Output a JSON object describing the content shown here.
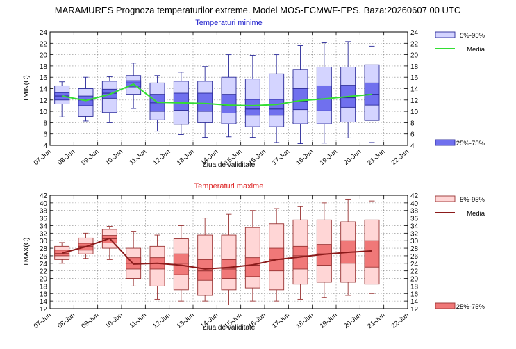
{
  "page_title": "MARAMURES  Prognoza temperaturilor extreme.  Model MOS-ECMWF-EPS. Baza:20260607 00 UTC",
  "colors": {
    "tmin_outer_fill": "#d4d4ff",
    "tmin_inner_fill": "#7070ee",
    "tmin_stroke": "#2a2a99",
    "tmin_media": "#33dd33",
    "tmin_title": "#2222cc",
    "tmax_outer_fill": "#ffd6d6",
    "tmax_inner_fill": "#f07878",
    "tmax_stroke": "#993333",
    "tmax_media": "#8b1a1a",
    "tmax_title": "#dd2222"
  },
  "chart_data": [
    {
      "type": "box",
      "title": "Temperaturi minime",
      "xlabel": "Ziua de validitate",
      "ylabel": "TMIN(C)",
      "x_ticks": [
        "07-Jun",
        "08-Jun",
        "09-Jun",
        "10-Jun",
        "11-Jun",
        "12-Jun",
        "13-Jun",
        "14-Jun",
        "15-Jun",
        "16-Jun",
        "17-Jun",
        "18-Jun",
        "19-Jun",
        "20-Jun",
        "21-Jun",
        "22-Jun"
      ],
      "y_ticks": [
        "4",
        "6",
        "8",
        "10",
        "12",
        "14",
        "16",
        "18",
        "20",
        "22",
        "24"
      ],
      "ylim": [
        4,
        24
      ],
      "grid": true,
      "legend": [
        {
          "label": "5%-95%",
          "kind": "outer"
        },
        {
          "label": "Media",
          "kind": "line"
        },
        {
          "label": "25%-75%",
          "kind": "inner"
        }
      ],
      "boxes": [
        {
          "x": 0,
          "min": 9.0,
          "p5": 11.3,
          "p25": 12.0,
          "median": 12.7,
          "p75": 13.3,
          "p95": 14.5,
          "max": 15.2,
          "mean": 12.7
        },
        {
          "x": 1,
          "min": 8.3,
          "p5": 9.1,
          "p25": 11.0,
          "median": 12.0,
          "p75": 12.7,
          "p95": 14.0,
          "max": 16.0,
          "mean": 11.9
        },
        {
          "x": 2,
          "min": 8.0,
          "p5": 9.8,
          "p25": 12.3,
          "median": 13.2,
          "p75": 13.9,
          "p95": 15.3,
          "max": 16.1,
          "mean": 13.0
        },
        {
          "x": 3,
          "min": 10.5,
          "p5": 13.0,
          "p25": 14.3,
          "median": 15.0,
          "p75": 15.4,
          "p95": 16.3,
          "max": 18.5,
          "mean": 14.8
        },
        {
          "x": 4,
          "min": 6.5,
          "p5": 8.5,
          "p25": 10.0,
          "median": 11.5,
          "p75": 13.0,
          "p95": 15.0,
          "max": 16.3,
          "mean": 11.6
        },
        {
          "x": 5,
          "min": 5.9,
          "p5": 7.7,
          "p25": 10.2,
          "median": 11.5,
          "p75": 13.2,
          "p95": 15.3,
          "max": 16.9,
          "mean": 11.5
        },
        {
          "x": 6,
          "min": 5.4,
          "p5": 8.0,
          "p25": 10.0,
          "median": 11.3,
          "p75": 13.2,
          "p95": 15.3,
          "max": 17.9,
          "mean": 11.4
        },
        {
          "x": 7,
          "min": 5.5,
          "p5": 7.8,
          "p25": 9.7,
          "median": 11.0,
          "p75": 13.0,
          "p95": 16.0,
          "max": 20.0,
          "mean": 11.1
        },
        {
          "x": 8,
          "min": 5.4,
          "p5": 7.3,
          "p25": 9.3,
          "median": 10.4,
          "p75": 12.1,
          "p95": 15.7,
          "max": 19.9,
          "mean": 11.0
        },
        {
          "x": 9,
          "min": 4.5,
          "p5": 7.3,
          "p25": 9.3,
          "median": 10.4,
          "p75": 12.1,
          "p95": 16.6,
          "max": 20.0,
          "mean": 11.2
        },
        {
          "x": 10,
          "min": 4.3,
          "p5": 7.8,
          "p25": 10.3,
          "median": 11.8,
          "p75": 14.0,
          "p95": 17.4,
          "max": 21.6,
          "mean": 11.9
        },
        {
          "x": 11,
          "min": 4.4,
          "p5": 7.8,
          "p25": 10.1,
          "median": 12.2,
          "p75": 14.5,
          "p95": 17.8,
          "max": 22.1,
          "mean": 12.2
        },
        {
          "x": 12,
          "min": 5.3,
          "p5": 8.1,
          "p25": 10.7,
          "median": 12.4,
          "p75": 14.6,
          "p95": 17.8,
          "max": 22.3,
          "mean": 12.6
        },
        {
          "x": 13,
          "min": 4.5,
          "p5": 8.4,
          "p25": 11.1,
          "median": 13.0,
          "p75": 15.0,
          "p95": 18.2,
          "max": 21.5,
          "mean": 13.0
        }
      ]
    },
    {
      "type": "box",
      "title": "Temperaturi maxime",
      "xlabel": "Ziua de validitate",
      "ylabel": "TMAX(C)",
      "x_ticks": [
        "07-Jun",
        "08-Jun",
        "09-Jun",
        "10-Jun",
        "11-Jun",
        "12-Jun",
        "13-Jun",
        "14-Jun",
        "15-Jun",
        "16-Jun",
        "17-Jun",
        "18-Jun",
        "19-Jun",
        "20-Jun",
        "21-Jun",
        "22-Jun"
      ],
      "y_ticks": [
        "12",
        "14",
        "16",
        "18",
        "20",
        "22",
        "24",
        "26",
        "28",
        "30",
        "32",
        "34",
        "36",
        "38",
        "40",
        "42"
      ],
      "ylim": [
        12,
        42
      ],
      "grid": true,
      "legend": [
        {
          "label": "5%-95%",
          "kind": "outer"
        },
        {
          "label": "Media",
          "kind": "line"
        },
        {
          "label": "25%-75%",
          "kind": "inner"
        }
      ],
      "boxes": [
        {
          "x": 0,
          "min": 24.0,
          "p5": 25.0,
          "p25": 26.0,
          "median": 26.6,
          "p75": 27.5,
          "p95": 28.5,
          "max": 29.5,
          "mean": 26.7
        },
        {
          "x": 1,
          "min": 25.3,
          "p5": 26.5,
          "p25": 27.5,
          "median": 28.5,
          "p75": 29.3,
          "p95": 30.7,
          "max": 32.0,
          "mean": 28.4
        },
        {
          "x": 2,
          "min": 25.0,
          "p5": 28.0,
          "p25": 29.4,
          "median": 30.5,
          "p75": 31.4,
          "p95": 33.0,
          "max": 33.8,
          "mean": 30.6
        },
        {
          "x": 3,
          "min": 18.0,
          "p5": 20.0,
          "p25": 22.5,
          "median": 24.0,
          "p75": 25.5,
          "p95": 28.0,
          "max": 32.5,
          "mean": 23.8
        },
        {
          "x": 4,
          "min": 14.5,
          "p5": 18.0,
          "p25": 22.5,
          "median": 24.0,
          "p75": 25.5,
          "p95": 28.5,
          "max": 31.5,
          "mean": 24.0
        },
        {
          "x": 5,
          "min": 14.0,
          "p5": 17.0,
          "p25": 21.0,
          "median": 24.0,
          "p75": 26.5,
          "p95": 30.5,
          "max": 34.0,
          "mean": 23.5
        },
        {
          "x": 6,
          "min": 14.0,
          "p5": 15.5,
          "p25": 19.5,
          "median": 22.0,
          "p75": 25.0,
          "p95": 31.5,
          "max": 36.0,
          "mean": 22.5
        },
        {
          "x": 7,
          "min": 13.0,
          "p5": 17.0,
          "p25": 20.0,
          "median": 22.5,
          "p75": 25.0,
          "p95": 31.5,
          "max": 37.0,
          "mean": 22.9
        },
        {
          "x": 8,
          "min": 14.0,
          "p5": 17.5,
          "p25": 20.5,
          "median": 23.5,
          "p75": 25.5,
          "p95": 33.5,
          "max": 38.0,
          "mean": 23.6
        },
        {
          "x": 9,
          "min": 14.0,
          "p5": 17.0,
          "p25": 22.0,
          "median": 25.0,
          "p75": 28.0,
          "p95": 34.5,
          "max": 38.5,
          "mean": 25.0
        },
        {
          "x": 10,
          "min": 14.5,
          "p5": 18.5,
          "p25": 22.5,
          "median": 26.0,
          "p75": 28.5,
          "p95": 35.5,
          "max": 39.0,
          "mean": 25.7
        },
        {
          "x": 11,
          "min": 15.0,
          "p5": 19.0,
          "p25": 23.5,
          "median": 26.5,
          "p75": 29.0,
          "p95": 35.5,
          "max": 40.0,
          "mean": 26.4
        },
        {
          "x": 12,
          "min": 15.5,
          "p5": 19.0,
          "p25": 24.0,
          "median": 27.0,
          "p75": 30.0,
          "p95": 35.0,
          "max": 41.0,
          "mean": 26.9
        },
        {
          "x": 13,
          "min": 16.0,
          "p5": 18.5,
          "p25": 23.0,
          "median": 27.0,
          "p75": 30.0,
          "p95": 35.5,
          "max": 40.5,
          "mean": 27.3
        }
      ]
    }
  ]
}
